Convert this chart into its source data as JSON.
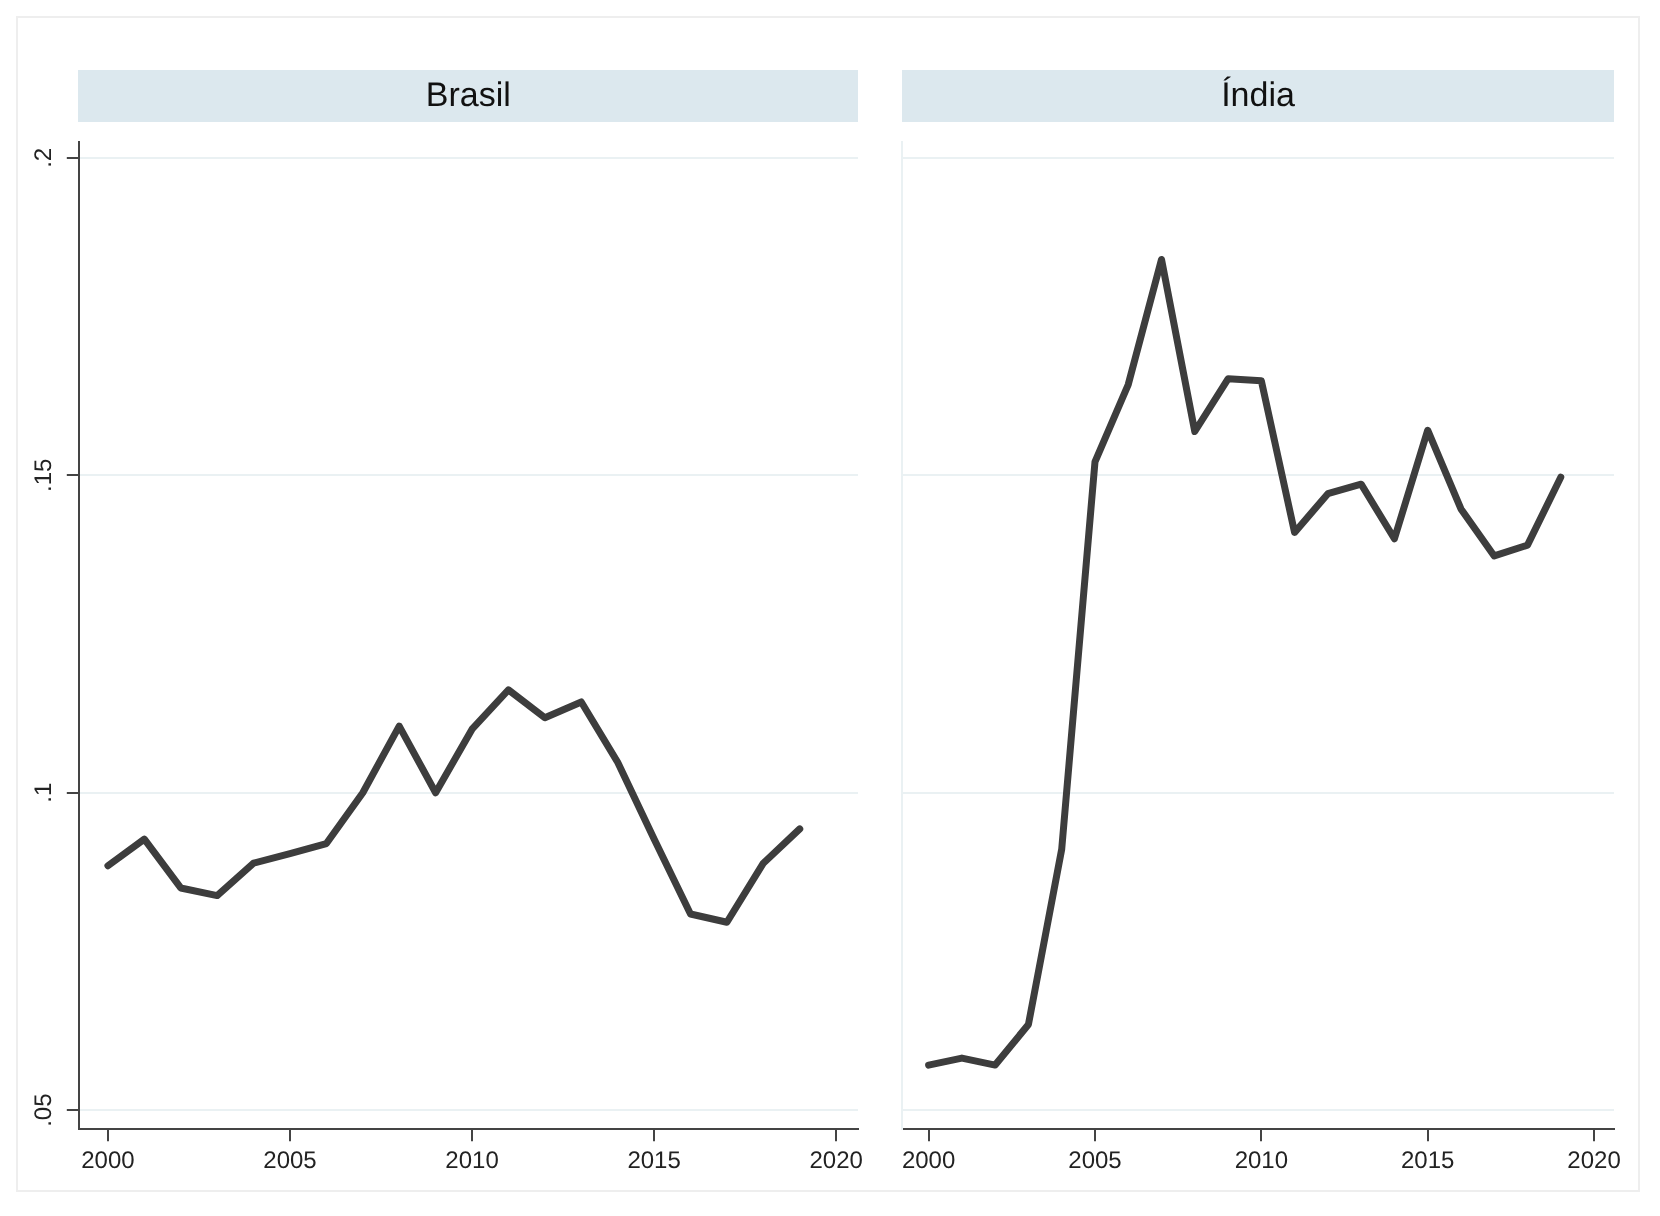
{
  "chart_data": [
    {
      "type": "line",
      "title": "Brasil",
      "x": [
        2000,
        2001,
        2002,
        2003,
        2004,
        2005,
        2006,
        2007,
        2008,
        2009,
        2010,
        2011,
        2012,
        2013,
        2014,
        2015,
        2016,
        2017,
        2018,
        2019
      ],
      "values": [
        0.0885,
        0.0927,
        0.085,
        0.0838,
        0.0889,
        0.0904,
        0.092,
        0.1,
        0.1105,
        0.1,
        0.11,
        0.1162,
        0.1118,
        0.1143,
        0.1048,
        0.0927,
        0.0809,
        0.0796,
        0.0889,
        0.0943
      ],
      "color": "#3d3d3d",
      "xlim": [
        1999.2,
        2020.6
      ],
      "xticks": [
        2000,
        2005,
        2010,
        2015,
        2020
      ],
      "ylim": [
        0.047,
        0.2025
      ],
      "yticks": [
        {
          "value": 0.05,
          "label": ".05"
        },
        {
          "value": 0.1,
          "label": ".1"
        },
        {
          "value": 0.15,
          "label": ".15"
        },
        {
          "value": 0.2,
          "label": ".2"
        }
      ],
      "grid": "y",
      "marker": "none"
    },
    {
      "type": "line",
      "title": "Índia",
      "x": [
        2000,
        2001,
        2002,
        2003,
        2004,
        2005,
        2006,
        2007,
        2008,
        2009,
        2010,
        2011,
        2012,
        2013,
        2014,
        2015,
        2016,
        2017,
        2018,
        2019
      ],
      "values": [
        0.0571,
        0.0582,
        0.0571,
        0.0635,
        0.0911,
        0.1521,
        0.1643,
        0.184,
        0.1569,
        0.1652,
        0.1649,
        0.141,
        0.1471,
        0.1486,
        0.14,
        0.1571,
        0.1447,
        0.1373,
        0.139,
        0.1497
      ],
      "color": "#3d3d3d",
      "xlim": [
        1999.2,
        2020.6
      ],
      "xticks": [
        2000,
        2005,
        2010,
        2015,
        2020
      ],
      "ylim": [
        0.047,
        0.2025
      ],
      "yticks": [
        {
          "value": 0.05,
          "label": null
        },
        {
          "value": 0.1,
          "label": null
        },
        {
          "value": 0.15,
          "label": null
        },
        {
          "value": 0.2,
          "label": null
        }
      ],
      "grid": "y",
      "marker": "none",
      "tick_labels": "x"
    }
  ]
}
